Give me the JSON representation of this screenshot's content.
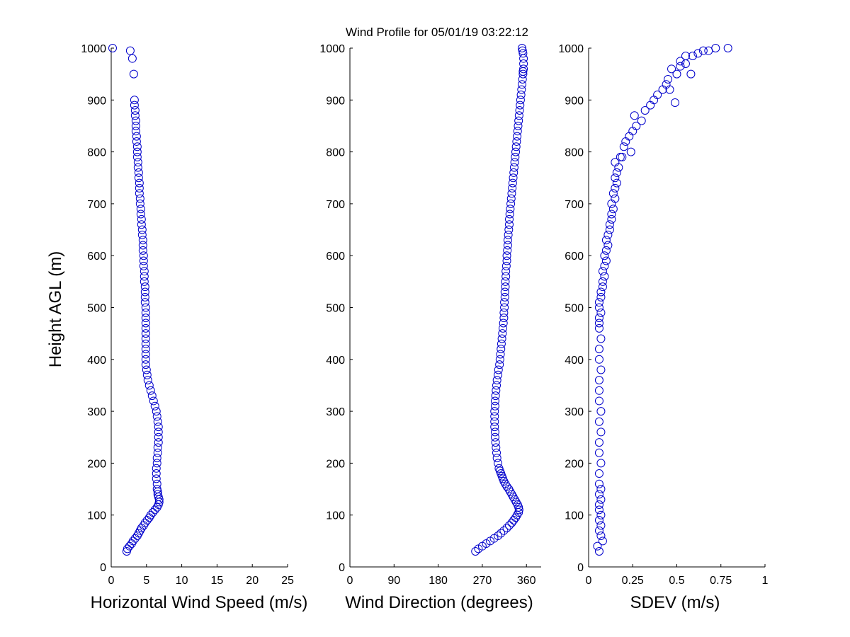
{
  "figure": {
    "title": "Wind Profile for  05/01/19 03:22:12",
    "marker_color": "#0000cc",
    "marker_style": "open-circle"
  },
  "chart_data": [
    {
      "type": "scatter",
      "id": "speed",
      "xlabel": "Horizontal Wind Speed (m/s)",
      "ylabel": "Height AGL (m)",
      "xlim": [
        0,
        25
      ],
      "ylim": [
        0,
        1000
      ],
      "xticks": [
        "0",
        "5",
        "10",
        "15",
        "20",
        "25"
      ],
      "yticks": [
        "0",
        "100",
        "200",
        "300",
        "400",
        "500",
        "600",
        "700",
        "800",
        "900",
        "1000"
      ],
      "series": [
        {
          "x": [
            2.2,
            2.3,
            2.6,
            2.9,
            3.1,
            3.4,
            3.7,
            3.9,
            4.1,
            4.3,
            4.6,
            4.8,
            5.1,
            5.4,
            5.6,
            5.9,
            6.2,
            6.5,
            6.7,
            6.8,
            6.8,
            6.7,
            6.6,
            6.6,
            6.5,
            6.5,
            6.4,
            6.4,
            6.4,
            6.5,
            6.5,
            6.6,
            6.6,
            6.7,
            6.7,
            6.7,
            6.7,
            6.6,
            6.5,
            6.4,
            6.2,
            6.0,
            5.8,
            5.6,
            5.4,
            5.2,
            5.1,
            5.0,
            4.9,
            4.9,
            4.9,
            4.9,
            4.9,
            4.9,
            4.9,
            4.9,
            4.9,
            4.9,
            4.9,
            4.9,
            4.8,
            4.8,
            4.8,
            4.8,
            4.7,
            4.7,
            4.7,
            4.6,
            4.6,
            4.6,
            4.5,
            4.5,
            4.5,
            4.4,
            4.4,
            4.3,
            4.3,
            4.2,
            4.2,
            4.1,
            4.1,
            4.0,
            4.0,
            4.0,
            3.9,
            3.9,
            3.8,
            3.8,
            3.7,
            3.7,
            3.7,
            3.6,
            3.6,
            3.5,
            3.5,
            3.5,
            3.4,
            3.4,
            3.3,
            3.3,
            3.2,
            3.0,
            2.7,
            0.2
          ],
          "y": [
            30,
            35,
            40,
            45,
            50,
            55,
            60,
            65,
            70,
            75,
            80,
            85,
            90,
            95,
            100,
            105,
            110,
            115,
            120,
            125,
            130,
            135,
            140,
            145,
            150,
            160,
            170,
            180,
            190,
            200,
            210,
            220,
            230,
            240,
            250,
            260,
            270,
            280,
            290,
            300,
            310,
            320,
            330,
            340,
            350,
            360,
            370,
            380,
            390,
            400,
            410,
            420,
            430,
            440,
            450,
            460,
            470,
            480,
            490,
            500,
            510,
            520,
            530,
            540,
            550,
            560,
            570,
            580,
            590,
            600,
            610,
            620,
            630,
            640,
            650,
            660,
            670,
            680,
            690,
            700,
            710,
            720,
            730,
            740,
            750,
            760,
            770,
            780,
            790,
            800,
            810,
            820,
            830,
            840,
            850,
            860,
            870,
            880,
            890,
            900,
            950,
            980,
            995,
            1000
          ]
        }
      ]
    },
    {
      "type": "scatter",
      "id": "direction",
      "xlabel": "Wind Direction (degrees)",
      "ylabel": "",
      "xlim": [
        0,
        390
      ],
      "ylim": [
        0,
        1000
      ],
      "xticks": [
        "0",
        "90",
        "180",
        "270",
        "360"
      ],
      "yticks": [
        "0",
        "100",
        "200",
        "300",
        "400",
        "500",
        "600",
        "700",
        "800",
        "900",
        "1000"
      ],
      "series": [
        {
          "x": [
            256,
            262,
            270,
            278,
            286,
            294,
            302,
            308,
            314,
            320,
            325,
            330,
            334,
            338,
            341,
            344,
            345,
            344,
            342,
            339,
            336,
            333,
            330,
            327,
            324,
            320,
            317,
            314,
            312,
            310,
            308,
            306,
            304,
            302,
            300,
            299,
            298,
            297,
            296,
            296,
            295,
            295,
            295,
            295,
            296,
            296,
            297,
            298,
            299,
            300,
            302,
            303,
            305,
            306,
            307,
            308,
            309,
            310,
            311,
            312,
            313,
            314,
            314,
            315,
            315,
            316,
            316,
            317,
            317,
            318,
            318,
            319,
            320,
            320,
            321,
            322,
            322,
            323,
            324,
            325,
            325,
            326,
            327,
            328,
            329,
            330,
            331,
            332,
            333,
            334,
            335,
            336,
            337,
            338,
            339,
            340,
            341,
            342,
            343,
            344,
            345,
            346,
            347,
            348,
            349,
            350,
            351,
            352,
            353,
            353,
            354,
            354,
            354,
            353,
            352,
            351
          ],
          "y": [
            30,
            35,
            40,
            45,
            50,
            55,
            60,
            65,
            70,
            75,
            80,
            85,
            90,
            95,
            100,
            105,
            110,
            115,
            120,
            125,
            130,
            135,
            140,
            145,
            150,
            155,
            160,
            165,
            170,
            175,
            180,
            185,
            190,
            200,
            210,
            220,
            230,
            240,
            250,
            260,
            270,
            280,
            290,
            300,
            310,
            320,
            330,
            340,
            350,
            360,
            370,
            380,
            390,
            400,
            410,
            420,
            430,
            440,
            450,
            460,
            470,
            480,
            490,
            500,
            510,
            520,
            530,
            540,
            550,
            560,
            570,
            580,
            590,
            600,
            610,
            620,
            630,
            640,
            650,
            660,
            670,
            680,
            690,
            700,
            710,
            720,
            730,
            740,
            750,
            760,
            770,
            780,
            790,
            800,
            810,
            820,
            830,
            840,
            850,
            860,
            870,
            880,
            890,
            900,
            910,
            920,
            930,
            940,
            950,
            955,
            960,
            970,
            980,
            990,
            995,
            1000
          ]
        }
      ]
    },
    {
      "type": "scatter",
      "id": "sdev",
      "xlabel": "SDEV  (m/s)",
      "ylabel": "",
      "xlim": [
        0,
        1
      ],
      "ylim": [
        0,
        1000
      ],
      "xticks": [
        "0",
        "0.25",
        "0.5",
        "0.75",
        "1"
      ],
      "yticks": [
        "0",
        "100",
        "200",
        "300",
        "400",
        "500",
        "600",
        "700",
        "800",
        "900",
        "1000"
      ],
      "series": [
        {
          "x": [
            0.06,
            0.05,
            0.08,
            0.07,
            0.06,
            0.07,
            0.06,
            0.07,
            0.06,
            0.06,
            0.07,
            0.06,
            0.07,
            0.06,
            0.06,
            0.07,
            0.06,
            0.06,
            0.07,
            0.06,
            0.07,
            0.06,
            0.06,
            0.06,
            0.07,
            0.06,
            0.06,
            0.07,
            0.06,
            0.06,
            0.06,
            0.07,
            0.06,
            0.06,
            0.07,
            0.07,
            0.08,
            0.08,
            0.09,
            0.08,
            0.09,
            0.1,
            0.09,
            0.1,
            0.11,
            0.1,
            0.11,
            0.12,
            0.12,
            0.13,
            0.13,
            0.14,
            0.13,
            0.15,
            0.14,
            0.15,
            0.16,
            0.15,
            0.16,
            0.17,
            0.15,
            0.18,
            0.19,
            0.24,
            0.2,
            0.21,
            0.23,
            0.25,
            0.27,
            0.3,
            0.26,
            0.32,
            0.35,
            0.37,
            0.39,
            0.46,
            0.49,
            0.44,
            0.42,
            0.45,
            0.5,
            0.47,
            0.52,
            0.58,
            0.55,
            0.52,
            0.59,
            0.62,
            0.65,
            0.55,
            0.72,
            0.68,
            0.79
          ],
          "y": [
            30,
            40,
            50,
            60,
            70,
            80,
            90,
            100,
            110,
            120,
            130,
            140,
            150,
            160,
            180,
            200,
            220,
            240,
            260,
            280,
            300,
            320,
            340,
            360,
            380,
            400,
            420,
            440,
            460,
            470,
            480,
            490,
            500,
            510,
            520,
            530,
            540,
            550,
            560,
            570,
            580,
            590,
            600,
            610,
            620,
            630,
            640,
            650,
            660,
            670,
            680,
            690,
            700,
            710,
            720,
            730,
            740,
            750,
            760,
            770,
            780,
            790,
            790,
            800,
            810,
            820,
            830,
            840,
            850,
            860,
            870,
            880,
            890,
            900,
            910,
            920,
            895,
            930,
            920,
            940,
            950,
            960,
            965,
            950,
            970,
            975,
            985,
            990,
            995,
            985,
            1000,
            995,
            1000
          ]
        }
      ]
    }
  ]
}
